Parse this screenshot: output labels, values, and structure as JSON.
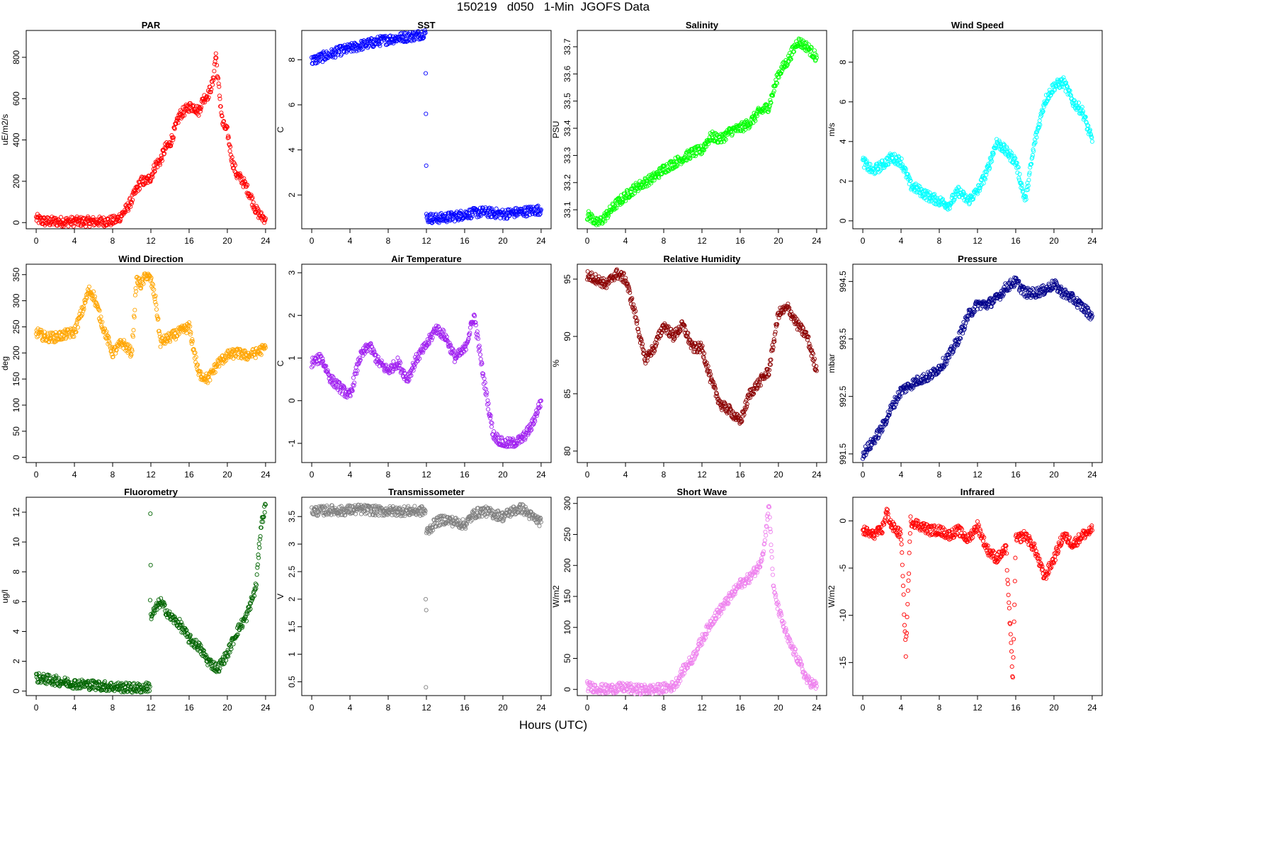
{
  "figure": {
    "title": "150219   d050   1-Min  JGOFS Data",
    "xlabel": "Hours (UTC)"
  },
  "chart_data": [
    {
      "type": "scatter",
      "title": "PAR",
      "ylabel": "uE/m2/s",
      "xlim": [
        0,
        24
      ],
      "ylim": [
        -30,
        930
      ],
      "xticks": [
        0,
        4,
        8,
        12,
        16,
        20,
        24
      ],
      "yticks": [
        0,
        200,
        400,
        600,
        800
      ],
      "color": "#ff0000",
      "x": [
        0,
        0.5,
        1,
        2,
        3,
        4,
        5,
        6,
        7,
        8,
        8.5,
        9,
        9.5,
        10,
        10.5,
        11,
        11.5,
        12,
        12.5,
        13,
        13.5,
        14,
        14.5,
        15,
        15.5,
        16,
        16.5,
        17,
        17.5,
        18,
        18.5,
        18.8,
        19,
        19.5,
        20,
        20.5,
        21,
        21.5,
        22,
        22.5,
        23,
        23.5,
        24
      ],
      "y": [
        20,
        10,
        5,
        5,
        5,
        5,
        5,
        5,
        5,
        8,
        15,
        40,
        70,
        110,
        160,
        200,
        200,
        220,
        280,
        300,
        360,
        380,
        450,
        520,
        540,
        560,
        560,
        540,
        600,
        620,
        680,
        820,
        700,
        480,
        440,
        300,
        230,
        210,
        170,
        120,
        60,
        30,
        20
      ]
    },
    {
      "type": "scatter",
      "title": "SST",
      "ylabel": "C",
      "xlim": [
        0,
        24
      ],
      "ylim": [
        0.5,
        9.3
      ],
      "xticks": [
        0,
        4,
        8,
        12,
        16,
        20,
        24
      ],
      "yticks": [
        2,
        4,
        6,
        8
      ],
      "color": "#0000ff",
      "x": [
        0,
        1,
        2,
        3,
        4,
        5,
        6,
        7,
        8,
        9,
        10,
        11,
        11.9,
        11.95,
        12,
        13,
        14,
        15,
        16,
        17,
        18,
        19,
        20,
        21,
        22,
        23,
        24
      ],
      "y": [
        7.95,
        8.1,
        8.25,
        8.4,
        8.5,
        8.62,
        8.72,
        8.82,
        8.9,
        8.97,
        9.02,
        9.08,
        9.2,
        5.6,
        1.0,
        0.95,
        1.0,
        1.05,
        1.15,
        1.2,
        1.25,
        1.2,
        1.15,
        1.2,
        1.25,
        1.3,
        1.35
      ]
    },
    {
      "type": "scatter",
      "title": "Salinity",
      "ylabel": "PSU",
      "xlim": [
        0,
        24
      ],
      "ylim": [
        33.03,
        33.76
      ],
      "xticks": [
        0,
        4,
        8,
        12,
        16,
        20,
        24
      ],
      "yticks": [
        33.1,
        33.2,
        33.3,
        33.4,
        33.5,
        33.6,
        33.7
      ],
      "color": "#00ff00",
      "x": [
        0,
        0.5,
        1,
        1.5,
        2,
        2.5,
        3,
        4,
        5,
        6,
        7,
        8,
        9,
        10,
        11,
        12,
        12.5,
        13,
        14,
        15,
        16,
        17,
        18,
        19,
        20,
        21,
        22,
        23,
        24
      ],
      "y": [
        33.08,
        33.07,
        33.05,
        33.06,
        33.08,
        33.1,
        33.12,
        33.15,
        33.18,
        33.2,
        33.22,
        33.25,
        33.27,
        33.29,
        33.31,
        33.32,
        33.35,
        33.37,
        33.36,
        33.39,
        33.4,
        33.42,
        33.46,
        33.48,
        33.6,
        33.65,
        33.72,
        33.7,
        33.66
      ]
    },
    {
      "type": "scatter",
      "title": "Wind Speed",
      "ylabel": "m/s",
      "xlim": [
        0,
        24
      ],
      "ylim": [
        -0.4,
        9.6
      ],
      "xticks": [
        0,
        4,
        8,
        12,
        16,
        20,
        24
      ],
      "yticks": [
        0,
        2,
        4,
        6,
        8
      ],
      "color": "#00ffff",
      "x": [
        0,
        1,
        2,
        3,
        4,
        5,
        6,
        7,
        8,
        9,
        10,
        11,
        12,
        13,
        14,
        15,
        16,
        17,
        18,
        19,
        20,
        21,
        22,
        23,
        24
      ],
      "y": [
        3,
        2.5,
        2.8,
        3.2,
        3,
        1.8,
        1.5,
        1.2,
        1,
        0.8,
        1.5,
        1,
        1.5,
        2.5,
        4,
        3.5,
        3,
        1,
        4,
        6,
        6.8,
        7,
        6,
        5.5,
        4
      ]
    },
    {
      "type": "scatter",
      "title": "Wind Direction",
      "ylabel": "deg",
      "xlim": [
        0,
        24
      ],
      "ylim": [
        -10,
        370
      ],
      "xticks": [
        0,
        4,
        8,
        12,
        16,
        20,
        24
      ],
      "yticks": [
        0,
        50,
        100,
        150,
        200,
        250,
        300,
        350
      ],
      "color": "#ffa500",
      "x": [
        0,
        1,
        2,
        3,
        4,
        5,
        5.5,
        6,
        7,
        8,
        9,
        10,
        10.5,
        11,
        11.5,
        12,
        12.5,
        13,
        14,
        15,
        16,
        17,
        18,
        19,
        20,
        21,
        22,
        23,
        24
      ],
      "y": [
        240,
        230,
        230,
        235,
        240,
        290,
        320,
        310,
        250,
        200,
        220,
        200,
        340,
        330,
        350,
        340,
        300,
        220,
        230,
        240,
        250,
        160,
        150,
        180,
        195,
        200,
        195,
        200,
        210
      ]
    },
    {
      "type": "scatter",
      "title": "Air Temperature",
      "ylabel": "C",
      "xlim": [
        0,
        24
      ],
      "ylim": [
        -1.45,
        3.2
      ],
      "xticks": [
        0,
        4,
        8,
        12,
        16,
        20,
        24
      ],
      "yticks": [
        -1,
        0,
        1,
        2,
        3
      ],
      "color": "#a020f0",
      "x": [
        0,
        1,
        2,
        3,
        4,
        5,
        6,
        7,
        8,
        9,
        10,
        11,
        12,
        13,
        14,
        15,
        16,
        17,
        18,
        19,
        20,
        21,
        22,
        23,
        24
      ],
      "y": [
        0.9,
        1,
        0.5,
        0.3,
        0.1,
        1,
        1.3,
        0.9,
        0.7,
        0.9,
        0.5,
        1,
        1.3,
        1.7,
        1.5,
        1,
        1.2,
        2,
        0.5,
        -0.8,
        -1,
        -1,
        -0.9,
        -0.6,
        0
      ]
    },
    {
      "type": "scatter",
      "title": "Relative Humidity",
      "ylabel": "%",
      "xlim": [
        0,
        24
      ],
      "ylim": [
        79,
        96.3
      ],
      "xticks": [
        0,
        4,
        8,
        12,
        16,
        20,
        24
      ],
      "yticks": [
        80,
        85,
        90,
        95
      ],
      "color": "#8b0000",
      "x": [
        0,
        1,
        2,
        3,
        4,
        5,
        6,
        7,
        8,
        9,
        10,
        11,
        12,
        13,
        14,
        15,
        16,
        17,
        18,
        19,
        20,
        21,
        22,
        23,
        24
      ],
      "y": [
        95.3,
        95,
        94.5,
        95.5,
        95,
        92,
        88,
        89,
        91,
        90,
        91,
        89,
        89,
        86,
        84,
        83.5,
        82.5,
        85,
        86,
        87,
        92,
        92.5,
        91,
        90,
        87
      ]
    },
    {
      "type": "scatter",
      "title": "Pressure",
      "ylabel": "mbar",
      "xlim": [
        0,
        24
      ],
      "ylim": [
        991.35,
        994.8
      ],
      "xticks": [
        0,
        4,
        8,
        12,
        16,
        20,
        24
      ],
      "yticks": [
        991.5,
        992.5,
        993.5,
        994.5
      ],
      "color": "#00008b",
      "x": [
        0,
        1,
        2,
        3,
        4,
        5,
        6,
        7,
        8,
        9,
        10,
        11,
        12,
        13,
        14,
        15,
        16,
        17,
        18,
        19,
        20,
        21,
        22,
        23,
        24
      ],
      "y": [
        991.5,
        991.7,
        991.95,
        992.3,
        992.6,
        992.7,
        992.8,
        992.85,
        993,
        993.2,
        993.5,
        993.9,
        994.1,
        994.1,
        994.2,
        994.4,
        994.5,
        994.3,
        994.3,
        994.35,
        994.45,
        994.3,
        994.2,
        994.05,
        993.9
      ]
    },
    {
      "type": "scatter",
      "title": "Fluorometry",
      "ylabel": "ug/l",
      "xlim": [
        0,
        24
      ],
      "ylim": [
        -0.3,
        13
      ],
      "xticks": [
        0,
        4,
        8,
        12,
        16,
        20,
        24
      ],
      "yticks": [
        0,
        2,
        4,
        6,
        8,
        10,
        12
      ],
      "color": "#006400",
      "x": [
        0,
        1,
        2,
        3,
        4,
        5,
        6,
        7,
        8,
        9,
        10,
        11,
        11.9,
        11.95,
        12,
        12.5,
        13,
        14,
        15,
        16,
        17,
        18,
        19,
        20,
        21,
        22,
        23,
        23.5,
        24
      ],
      "y": [
        0.9,
        0.8,
        0.7,
        0.6,
        0.5,
        0.45,
        0.4,
        0.35,
        0.3,
        0.25,
        0.22,
        0.2,
        0.3,
        11.9,
        5,
        5.5,
        6,
        5,
        4.5,
        3.5,
        3,
        2,
        1.5,
        2.5,
        4,
        5,
        7,
        11,
        12.5
      ]
    },
    {
      "type": "scatter",
      "title": "Transmissometer",
      "ylabel": "V",
      "xlim": [
        0,
        24
      ],
      "ylim": [
        0.25,
        3.85
      ],
      "xticks": [
        0,
        4,
        8,
        12,
        16,
        20,
        24
      ],
      "yticks": [
        0.5,
        1,
        1.5,
        2,
        2.5,
        3,
        3.5
      ],
      "color": "#808080",
      "x": [
        0,
        1,
        2,
        3,
        4,
        5,
        6,
        7,
        8,
        9,
        10,
        11,
        11.9,
        11.95,
        12,
        12.5,
        13,
        14,
        15,
        16,
        17,
        18,
        19,
        20,
        21,
        22,
        23,
        24
      ],
      "y": [
        3.6,
        3.6,
        3.62,
        3.6,
        3.62,
        3.63,
        3.62,
        3.6,
        3.6,
        3.6,
        3.6,
        3.6,
        3.6,
        0.4,
        3.2,
        3.3,
        3.4,
        3.45,
        3.4,
        3.35,
        3.55,
        3.6,
        3.55,
        3.5,
        3.6,
        3.65,
        3.5,
        3.4
      ]
    },
    {
      "type": "scatter",
      "title": "Short Wave",
      "ylabel": "W/m2",
      "xlim": [
        0,
        24
      ],
      "ylim": [
        -10,
        310
      ],
      "xticks": [
        0,
        4,
        8,
        12,
        16,
        20,
        24
      ],
      "yticks": [
        0,
        50,
        100,
        150,
        200,
        250,
        300
      ],
      "color": "#ee82ee",
      "x": [
        0,
        1,
        2,
        3,
        4,
        5,
        6,
        7,
        8,
        9,
        9.5,
        10,
        11,
        12,
        13,
        14,
        15,
        16,
        17,
        18,
        18.5,
        19,
        19.5,
        20,
        21,
        22,
        23,
        24
      ],
      "y": [
        5,
        2,
        0,
        2,
        3,
        0,
        0,
        0,
        2,
        5,
        15,
        30,
        50,
        80,
        110,
        130,
        150,
        170,
        180,
        200,
        230,
        300,
        160,
        130,
        80,
        50,
        15,
        5
      ]
    },
    {
      "type": "scatter",
      "title": "Infrared",
      "ylabel": "W/m2",
      "xlim": [
        0,
        24
      ],
      "ylim": [
        -18.5,
        2.5
      ],
      "xticks": [
        0,
        4,
        8,
        12,
        16,
        20,
        24
      ],
      "yticks": [
        -15,
        -10,
        -5,
        0
      ],
      "color": "#ff0000",
      "x": [
        0,
        1,
        2,
        2.5,
        3,
        4,
        4.5,
        5,
        6,
        7,
        8,
        9,
        10,
        11,
        12,
        13,
        14,
        15,
        15.7,
        16,
        17,
        18,
        19,
        20,
        21,
        22,
        23,
        24
      ],
      "y": [
        -1,
        -1.5,
        -1,
        1,
        -0.5,
        -1.5,
        -14,
        0,
        -0.5,
        -1,
        -1,
        -1.5,
        -1,
        -2,
        -0.5,
        -3,
        -4,
        -3,
        -17,
        -2,
        -1.5,
        -3,
        -6,
        -4,
        -1.5,
        -2.5,
        -1.5,
        -1
      ]
    }
  ]
}
